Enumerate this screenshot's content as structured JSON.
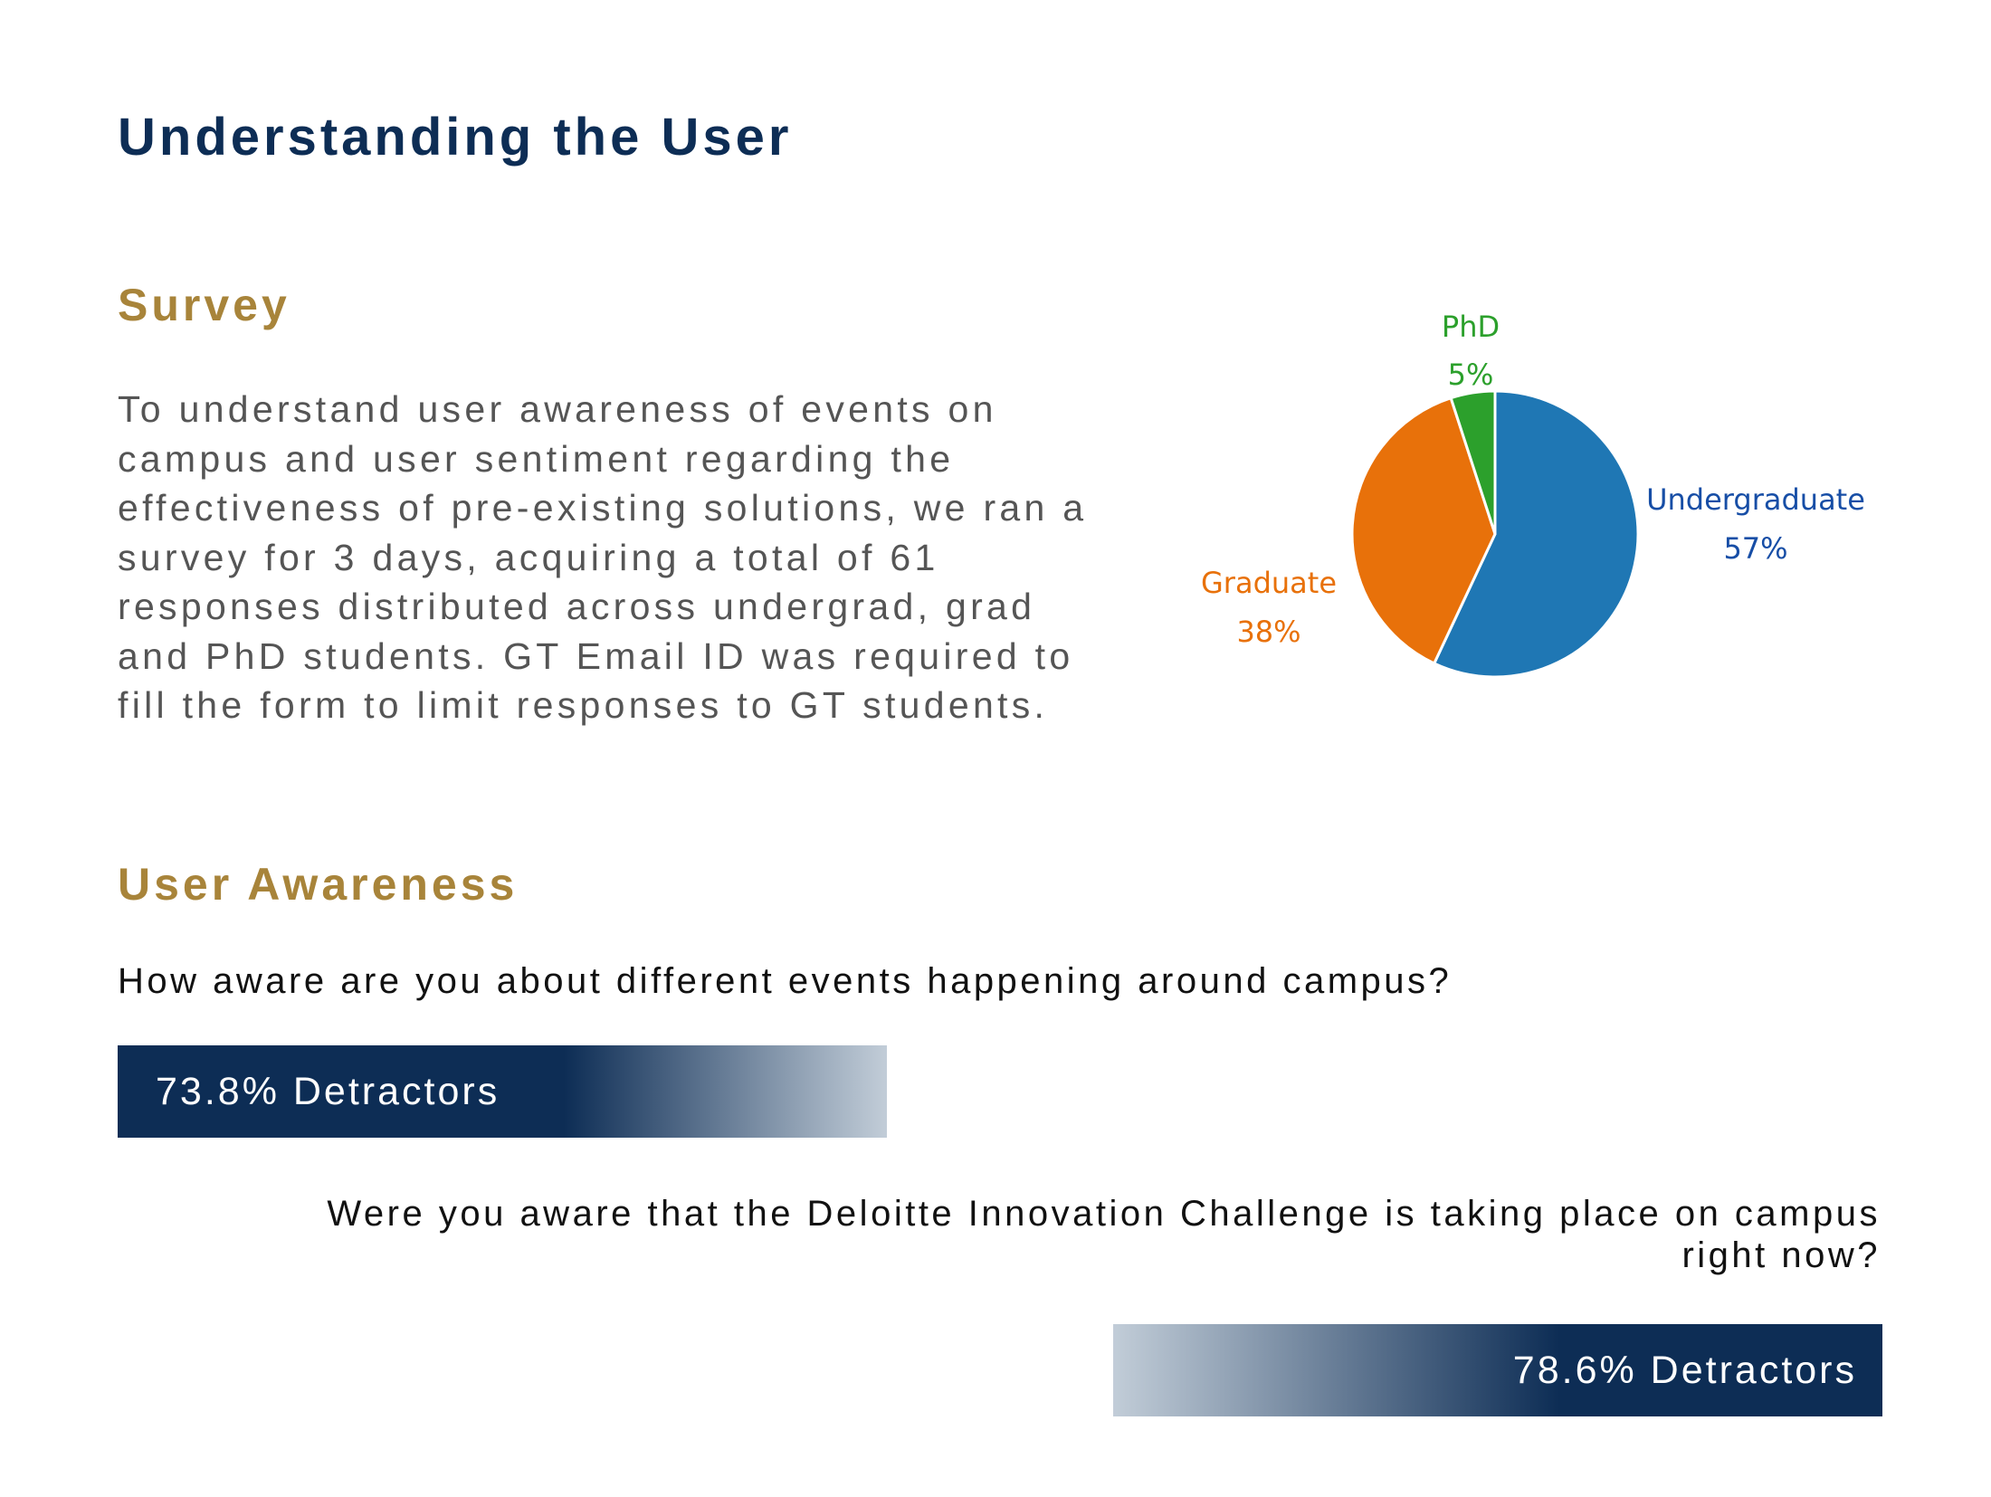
{
  "page": {
    "title": "Understanding the User"
  },
  "survey": {
    "heading": "Survey",
    "body": "To understand user awareness of events on campus and user sentiment regarding the effectiveness of pre-existing solutions, we ran a survey for 3 days, acquiring a total of 61 responses distributed across undergrad, grad and PhD students. GT Email ID was required to fill the form to limit responses to GT students."
  },
  "awareness": {
    "heading": "User Awareness",
    "question_1": "How aware are you about different events happening around campus?",
    "bar_1_label": "73.8% Detractors",
    "bar_1_value_percent": 73.8,
    "question_2": "Were you aware that the Deloitte Innovation Challenge is taking place on campus right now?",
    "bar_2_label": "78.6% Detractors",
    "bar_2_value_percent": 78.6
  },
  "colors": {
    "navy": "#0d2d55",
    "gold": "#a8843a",
    "undergraduate": "#1f77b4",
    "graduate": "#e8710a",
    "phd": "#2ca02c"
  },
  "chart_data": {
    "type": "pie",
    "title": "",
    "slices": [
      {
        "name": "Undergraduate",
        "value": 57,
        "label": "57%",
        "color": "#1f77b4",
        "text_color": "#174ea6"
      },
      {
        "name": "Graduate",
        "value": 38,
        "label": "38%",
        "color": "#e8710a",
        "text_color": "#e8710a"
      },
      {
        "name": "PhD",
        "value": 5,
        "label": "5%",
        "color": "#2ca02c",
        "text_color": "#2ca02c"
      }
    ]
  }
}
